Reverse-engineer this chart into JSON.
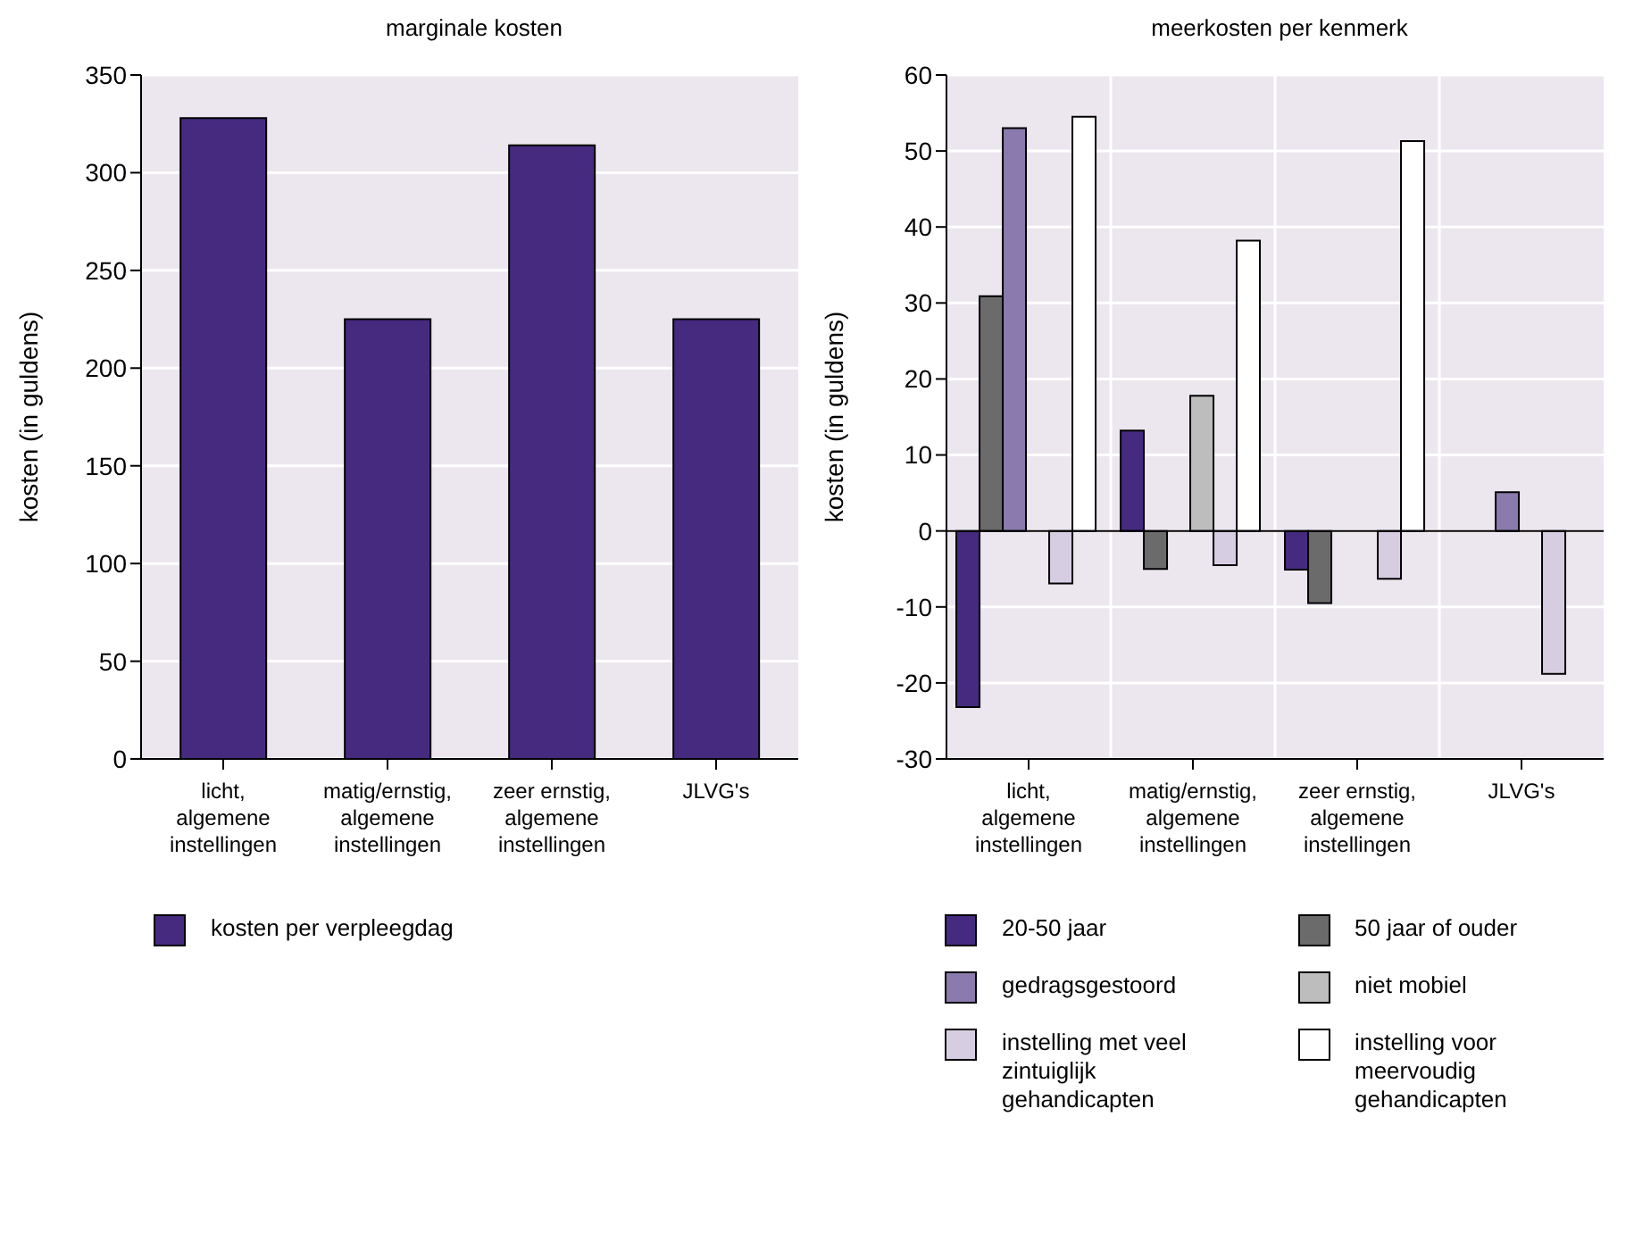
{
  "chart_data": [
    {
      "type": "bar",
      "title": "marginale kosten",
      "ylabel": "kosten (in guldens)",
      "categories": [
        "licht, algemene instellingen",
        "matig/ernstig, algemene instellingen",
        "zeer ernstig, algemene instellingen",
        "JLVG's"
      ],
      "series": [
        {
          "name": "kosten per verpleegdag",
          "color": "#452a80",
          "values": [
            328,
            225,
            314,
            225
          ]
        }
      ],
      "ylim": [
        0,
        350
      ],
      "yticks": [
        0,
        50,
        100,
        150,
        200,
        250,
        300,
        350
      ],
      "grid": "y",
      "legend": "bottom"
    },
    {
      "type": "bar",
      "title": "meerkosten per kenmerk",
      "ylabel": "kosten (in guldens)",
      "categories": [
        "licht, algemene instellingen",
        "matig/ernstig, algemene instellingen",
        "zeer ernstig, algemene instellingen",
        "JLVG's"
      ],
      "series": [
        {
          "name": "20-50 jaar",
          "color": "#452a80",
          "values": [
            -23.2,
            13.2,
            -5.1,
            null
          ]
        },
        {
          "name": "50 jaar of ouder",
          "color": "#6b6b6b",
          "values": [
            30.9,
            -5.0,
            -9.5,
            null
          ]
        },
        {
          "name": "gedragsgestoord",
          "color": "#8b7aad",
          "values": [
            53,
            null,
            null,
            5.1
          ]
        },
        {
          "name": "niet mobiel",
          "color": "#bdbdbd",
          "values": [
            null,
            17.8,
            null,
            null
          ]
        },
        {
          "name": "instelling met veel zintuiglijk gehandicapten",
          "color": "#d7cde3",
          "values": [
            -6.9,
            -4.5,
            -6.3,
            -18.8
          ]
        },
        {
          "name": "instelling voor meervoudig gehandicapten",
          "color": "#ffffff",
          "values": [
            54.5,
            38.2,
            51.3,
            null
          ]
        }
      ],
      "ylim": [
        -30,
        60
      ],
      "yticks": [
        -30,
        -20,
        -10,
        0,
        10,
        20,
        30,
        40,
        50,
        60
      ],
      "grid": true,
      "legend": "bottom"
    }
  ]
}
